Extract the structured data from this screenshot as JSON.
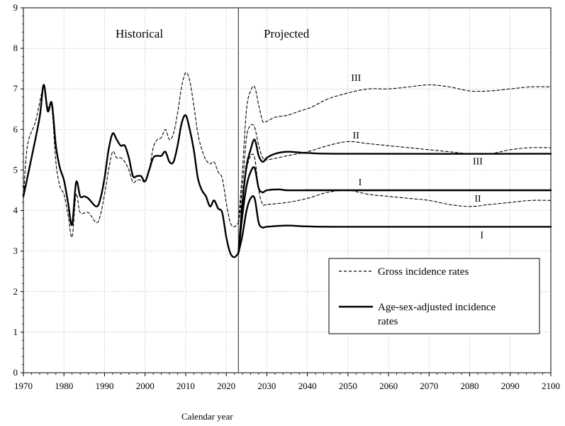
{
  "chart_data": {
    "type": "line",
    "xlabel": "Calendar year",
    "ylabel": "",
    "xlim": [
      1970,
      2100
    ],
    "ylim": [
      0,
      9
    ],
    "x_ticks": [
      "1970",
      "1980",
      "1990",
      "2000",
      "2010",
      "2020",
      "2030",
      "2040",
      "2050",
      "2060",
      "2070",
      "2080",
      "2090",
      "2100"
    ],
    "y_ticks": [
      "0",
      "1",
      "2",
      "3",
      "4",
      "5",
      "6",
      "7",
      "8",
      "9"
    ],
    "grid": true,
    "divider_year": 2023,
    "annotations": {
      "historical": "Historical",
      "projected": "Projected"
    },
    "legend": {
      "placement": "bottom-right",
      "entries": [
        {
          "label": "Gross incidence rates",
          "style": "dashed"
        },
        {
          "label": "Age-sex-adjusted incidence",
          "label2": "rates",
          "style": "solid"
        }
      ]
    },
    "series": [
      {
        "style": "solid",
        "segment": "historical",
        "points": [
          [
            1970,
            4.35
          ],
          [
            1972,
            5.3
          ],
          [
            1974,
            6.3
          ],
          [
            1975,
            7.1
          ],
          [
            1976,
            6.45
          ],
          [
            1977,
            6.65
          ],
          [
            1978,
            5.6
          ],
          [
            1979,
            5.05
          ],
          [
            1980,
            4.75
          ],
          [
            1981,
            4.2
          ],
          [
            1982,
            3.65
          ],
          [
            1983,
            4.7
          ],
          [
            1984,
            4.35
          ],
          [
            1985,
            4.35
          ],
          [
            1986,
            4.3
          ],
          [
            1988,
            4.1
          ],
          [
            1989,
            4.3
          ],
          [
            1990,
            4.8
          ],
          [
            1991,
            5.5
          ],
          [
            1992,
            5.9
          ],
          [
            1993,
            5.75
          ],
          [
            1994,
            5.6
          ],
          [
            1995,
            5.6
          ],
          [
            1996,
            5.3
          ],
          [
            1997,
            4.85
          ],
          [
            1998,
            4.85
          ],
          [
            1999,
            4.85
          ],
          [
            2000,
            4.72
          ],
          [
            2001,
            5.0
          ],
          [
            2002,
            5.3
          ],
          [
            2003,
            5.35
          ],
          [
            2004,
            5.35
          ],
          [
            2005,
            5.45
          ],
          [
            2006,
            5.2
          ],
          [
            2007,
            5.2
          ],
          [
            2008,
            5.6
          ],
          [
            2009,
            6.15
          ],
          [
            2010,
            6.35
          ],
          [
            2011,
            6.0
          ],
          [
            2012,
            5.5
          ],
          [
            2013,
            4.8
          ],
          [
            2014,
            4.5
          ],
          [
            2015,
            4.35
          ],
          [
            2016,
            4.1
          ],
          [
            2017,
            4.25
          ],
          [
            2018,
            4.05
          ],
          [
            2019,
            3.95
          ],
          [
            2020,
            3.35
          ],
          [
            2021,
            2.95
          ],
          [
            2022,
            2.85
          ],
          [
            2023,
            2.95
          ]
        ]
      },
      {
        "style": "dashed",
        "segment": "historical",
        "points": [
          [
            1970,
            4.3
          ],
          [
            1971,
            5.6
          ],
          [
            1973,
            6.2
          ],
          [
            1975,
            7.05
          ],
          [
            1976,
            6.55
          ],
          [
            1977,
            6.55
          ],
          [
            1978,
            5.2
          ],
          [
            1979,
            4.6
          ],
          [
            1980,
            4.4
          ],
          [
            1981,
            3.9
          ],
          [
            1982,
            3.35
          ],
          [
            1983,
            4.4
          ],
          [
            1984,
            3.95
          ],
          [
            1986,
            3.95
          ],
          [
            1988,
            3.7
          ],
          [
            1989,
            3.9
          ],
          [
            1990,
            4.4
          ],
          [
            1991,
            5.0
          ],
          [
            1992,
            5.45
          ],
          [
            1993,
            5.3
          ],
          [
            1994,
            5.3
          ],
          [
            1995,
            5.2
          ],
          [
            1996,
            5.0
          ],
          [
            1997,
            4.7
          ],
          [
            1998,
            4.75
          ],
          [
            1999,
            4.75
          ],
          [
            2000,
            4.72
          ],
          [
            2001,
            5.0
          ],
          [
            2002,
            5.55
          ],
          [
            2003,
            5.75
          ],
          [
            2004,
            5.8
          ],
          [
            2005,
            6.0
          ],
          [
            2006,
            5.75
          ],
          [
            2007,
            5.9
          ],
          [
            2008,
            6.4
          ],
          [
            2009,
            7.05
          ],
          [
            2010,
            7.4
          ],
          [
            2011,
            7.2
          ],
          [
            2012,
            6.6
          ],
          [
            2013,
            5.9
          ],
          [
            2014,
            5.5
          ],
          [
            2015,
            5.25
          ],
          [
            2016,
            5.15
          ],
          [
            2017,
            5.2
          ],
          [
            2018,
            4.95
          ],
          [
            2019,
            4.8
          ],
          [
            2020,
            4.2
          ],
          [
            2021,
            3.7
          ],
          [
            2022,
            3.6
          ],
          [
            2023,
            3.7
          ]
        ]
      },
      {
        "style": "dashed",
        "name": "III",
        "points": [
          [
            2023,
            3.7
          ],
          [
            2024,
            5.0
          ],
          [
            2025,
            6.5
          ],
          [
            2026,
            6.95
          ],
          [
            2027,
            7.05
          ],
          [
            2028,
            6.6
          ],
          [
            2029,
            6.2
          ],
          [
            2030,
            6.2
          ],
          [
            2032,
            6.3
          ],
          [
            2035,
            6.35
          ],
          [
            2038,
            6.45
          ],
          [
            2041,
            6.55
          ],
          [
            2045,
            6.75
          ],
          [
            2050,
            6.9
          ],
          [
            2055,
            7.0
          ],
          [
            2060,
            7.0
          ],
          [
            2065,
            7.05
          ],
          [
            2070,
            7.1
          ],
          [
            2075,
            7.05
          ],
          [
            2080,
            6.95
          ],
          [
            2085,
            6.95
          ],
          [
            2090,
            7.0
          ],
          [
            2095,
            7.05
          ],
          [
            2100,
            7.05
          ]
        ]
      },
      {
        "style": "dashed",
        "name": "II",
        "points": [
          [
            2023,
            3.7
          ],
          [
            2024,
            4.6
          ],
          [
            2025,
            5.8
          ],
          [
            2026,
            6.1
          ],
          [
            2027,
            6.05
          ],
          [
            2028,
            5.6
          ],
          [
            2029,
            5.3
          ],
          [
            2030,
            5.25
          ],
          [
            2035,
            5.35
          ],
          [
            2040,
            5.45
          ],
          [
            2045,
            5.6
          ],
          [
            2050,
            5.7
          ],
          [
            2055,
            5.65
          ],
          [
            2060,
            5.6
          ],
          [
            2065,
            5.55
          ],
          [
            2070,
            5.5
          ],
          [
            2075,
            5.45
          ],
          [
            2080,
            5.4
          ],
          [
            2085,
            5.4
          ],
          [
            2090,
            5.5
          ],
          [
            2095,
            5.55
          ],
          [
            2100,
            5.55
          ]
        ]
      },
      {
        "style": "dashed",
        "name": "I",
        "points": [
          [
            2023,
            3.7
          ],
          [
            2024,
            4.3
          ],
          [
            2025,
            5.0
          ],
          [
            2026,
            5.35
          ],
          [
            2027,
            5.3
          ],
          [
            2028,
            4.5
          ],
          [
            2029,
            4.15
          ],
          [
            2030,
            4.15
          ],
          [
            2035,
            4.2
          ],
          [
            2040,
            4.3
          ],
          [
            2045,
            4.45
          ],
          [
            2050,
            4.5
          ],
          [
            2055,
            4.4
          ],
          [
            2060,
            4.35
          ],
          [
            2065,
            4.3
          ],
          [
            2070,
            4.25
          ],
          [
            2075,
            4.15
          ],
          [
            2080,
            4.1
          ],
          [
            2085,
            4.15
          ],
          [
            2090,
            4.2
          ],
          [
            2095,
            4.25
          ],
          [
            2100,
            4.25
          ]
        ]
      },
      {
        "style": "solid",
        "name": "III",
        "points": [
          [
            2023,
            2.95
          ],
          [
            2024,
            4.2
          ],
          [
            2025,
            5.1
          ],
          [
            2026,
            5.5
          ],
          [
            2027,
            5.75
          ],
          [
            2028,
            5.35
          ],
          [
            2029,
            5.2
          ],
          [
            2030,
            5.3
          ],
          [
            2032,
            5.4
          ],
          [
            2035,
            5.45
          ],
          [
            2040,
            5.42
          ],
          [
            2050,
            5.4
          ],
          [
            2100,
            5.4
          ]
        ]
      },
      {
        "style": "solid",
        "name": "II",
        "points": [
          [
            2023,
            2.95
          ],
          [
            2024,
            3.9
          ],
          [
            2025,
            4.6
          ],
          [
            2026,
            4.95
          ],
          [
            2027,
            5.05
          ],
          [
            2028,
            4.55
          ],
          [
            2029,
            4.45
          ],
          [
            2030,
            4.5
          ],
          [
            2033,
            4.52
          ],
          [
            2035,
            4.5
          ],
          [
            2040,
            4.5
          ],
          [
            2050,
            4.5
          ],
          [
            2100,
            4.5
          ]
        ]
      },
      {
        "style": "solid",
        "name": "I",
        "points": [
          [
            2023,
            2.95
          ],
          [
            2024,
            3.4
          ],
          [
            2025,
            4.0
          ],
          [
            2026,
            4.3
          ],
          [
            2027,
            4.3
          ],
          [
            2028,
            3.7
          ],
          [
            2029,
            3.58
          ],
          [
            2030,
            3.6
          ],
          [
            2035,
            3.63
          ],
          [
            2040,
            3.61
          ],
          [
            2050,
            3.6
          ],
          [
            2100,
            3.6
          ]
        ]
      }
    ],
    "series_labels": [
      {
        "text": "III",
        "x": 2052,
        "y": 7.2
      },
      {
        "text": "II",
        "x": 2052,
        "y": 5.78
      },
      {
        "text": "III",
        "x": 2082,
        "y": 5.14
      },
      {
        "text": "I",
        "x": 2053,
        "y": 4.62
      },
      {
        "text": "II",
        "x": 2082,
        "y": 4.22
      },
      {
        "text": "I",
        "x": 2083,
        "y": 3.32
      }
    ]
  }
}
